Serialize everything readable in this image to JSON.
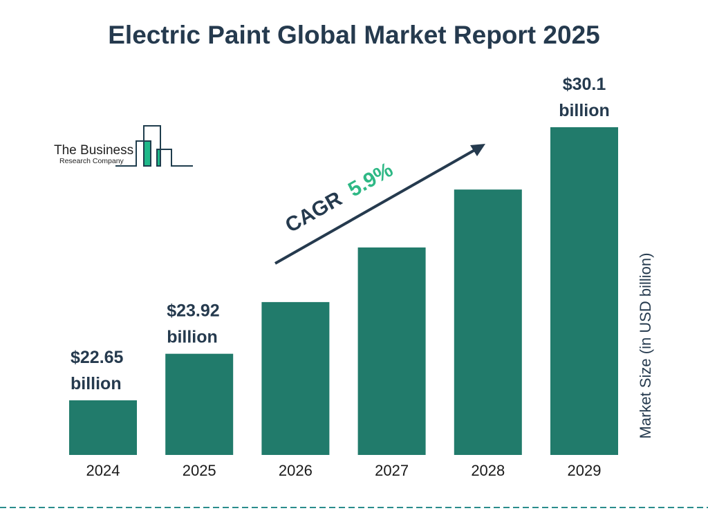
{
  "chart_data": {
    "type": "bar",
    "title": "Electric Paint Global Market Report 2025",
    "categories": [
      "2024",
      "2025",
      "2026",
      "2027",
      "2028",
      "2029"
    ],
    "values": [
      22.65,
      23.92,
      25.33,
      26.82,
      28.4,
      30.1
    ],
    "data_labels": [
      {
        "index": 0,
        "line1": "$22.65",
        "line2": "billion"
      },
      {
        "index": 1,
        "line1": "$23.92",
        "line2": "billion"
      },
      {
        "index": 5,
        "line1": "$30.1",
        "line2": "billion"
      }
    ],
    "ylabel": "Market Size (in USD billion)",
    "xlabel": "",
    "grid": false,
    "bar_color": "#217b6b",
    "annotation": {
      "prefix": "CAGR",
      "value": "5.9%",
      "prefix_color": "#253a4e",
      "value_color": "#2eb885"
    }
  },
  "logo": {
    "line1": "The Business",
    "line2": "Research Company"
  },
  "colors": {
    "title": "#253a4e",
    "divider": "#2a8c8c",
    "logo_green": "#1fb889",
    "logo_dark": "#1f3d4d"
  }
}
